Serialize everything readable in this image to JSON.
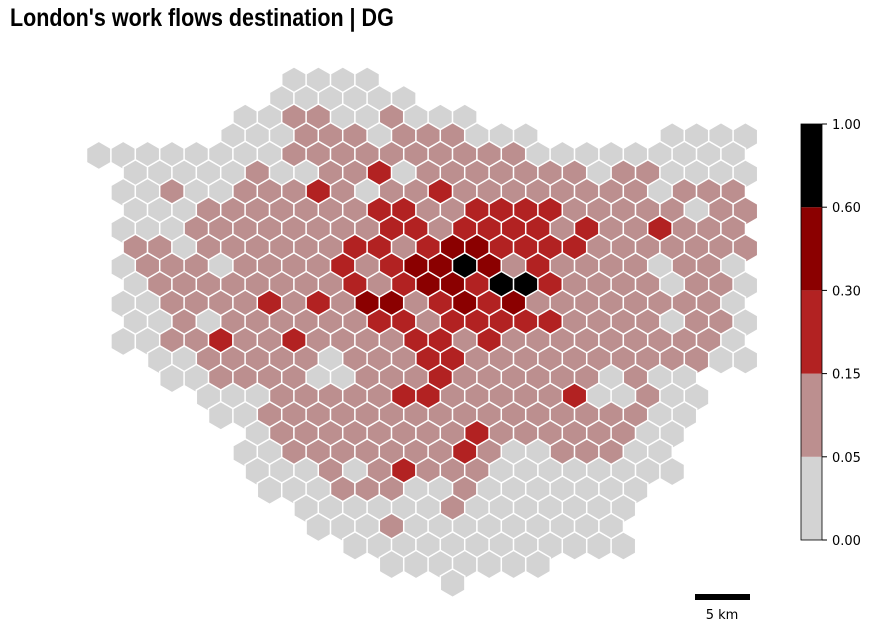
{
  "title": "London's work flows destination | DG",
  "scale_bar": {
    "label": "5 km"
  },
  "legend": {
    "breaks": [
      "0.00",
      "0.05",
      "0.15",
      "0.30",
      "0.60",
      "1.00"
    ],
    "bins": [
      {
        "range": "0.00–0.05",
        "color": "#d3d3d3"
      },
      {
        "range": "0.05–0.15",
        "color": "#bc8f8f"
      },
      {
        "range": "0.15–0.30",
        "color": "#b22222"
      },
      {
        "range": "0.30–0.60",
        "color": "#8b0000"
      },
      {
        "range": "0.60–1.00",
        "color": "#000000"
      }
    ]
  },
  "map": {
    "description_free": true,
    "grid_rows": [
      "..........LLLL...............",
      ".........LLLLLL..............",
      "........LLMMLLMLLL...........",
      ".......LLLMMMLMMMLLL.....LLLL",
      "..LLLLLLLLMMMMMMMMMMLLLLLLLLLL",
      "...LLLLLMLLMMRLMMMMMMMLMMLLLLL",
      "...LLMLLMMMRMLMMRMMMMMMMMLMMMLL",
      "...LLLMMMMMMMRRMMRRRRMMMMMLMMRLLLL",
      "...LLLMMMMMMMMRRMRRRRMRMMRMMMMLLLL",
      "...MMLMMMMMMRRMRDDRRRRMMMMMMMMLLLLL",
      "...LMMMLMMMMRMRDDXDMRMMMMLMMLLLLL",
      "...LMMMMMMMMRMRDDRXXRMMMMLMMLLL",
      "...LLMMMMRMRMDDMRDRDMMMMMMMMLLL",
      "...LLMLMMMMMMRRMRRRRRMMMMLMMLLL",
      "...LLMMRMMRMMMMRRMRMMMMMMMMMLL",
      "....LLMMMMMLMMMRRMMMMMMMMMMLL",
      ".....LLMMMMLLMMMRMMMMMMLMLL",
      "......LLLMMMMMRRMMMMMRLLMLL",
      ".......LLMMMMMMMMMMMMMMMMLL",
      "........LMMMMMMMMRMMMMMMLL",
      "........LLMMMMMMMRMLLMMMLL",
      "........LLLMLMRMMMLLLLLLLL",
      ".........LLLMMMLLMLLLLLLL",
      "..........LLLLLLMLLLLLLL",
      "...........LLLMLLLLLLLLL",
      "............LLLLLLLLLLLL",
      "..............LLLLLLL",
      "................L"
    ]
  }
}
